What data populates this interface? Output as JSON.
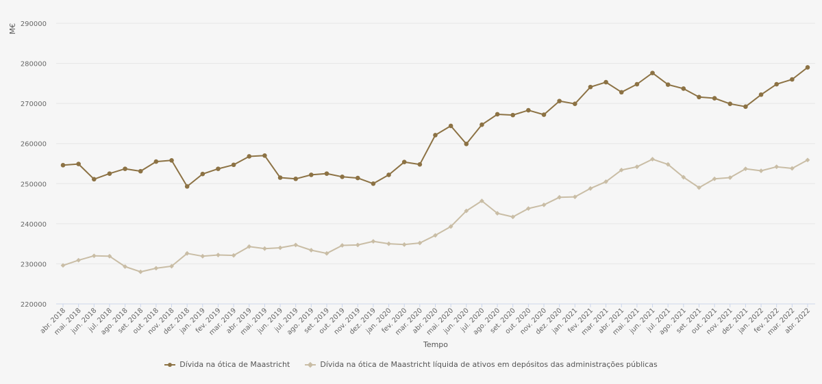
{
  "chart_data": {
    "type": "line",
    "title": "",
    "xlabel": "Tempo",
    "ylabel": "M€",
    "ylim": [
      220000,
      290000
    ],
    "yticks": [
      "220000",
      "230000",
      "240000",
      "250000",
      "260000",
      "270000",
      "280000",
      "290000"
    ],
    "categories": [
      "abr. 2018",
      "mai. 2018",
      "jun. 2018",
      "jul. 2018",
      "ago. 2018",
      "set. 2018",
      "out. 2018",
      "nov. 2018",
      "dez. 2018",
      "jan. 2019",
      "fev. 2019",
      "mar. 2019",
      "abr. 2019",
      "mai. 2019",
      "jun. 2019",
      "jul. 2019",
      "ago. 2019",
      "set. 2019",
      "out. 2019",
      "nov. 2019",
      "dez. 2019",
      "jan. 2020",
      "fev. 2020",
      "mar. 2020",
      "abr. 2020",
      "mai. 2020",
      "jun. 2020",
      "jul. 2020",
      "ago. 2020",
      "set. 2020",
      "out. 2020",
      "nov. 2020",
      "dez. 2020",
      "jan. 2021",
      "fev. 2021",
      "mar. 2021",
      "abr. 2021",
      "mai. 2021",
      "jun. 2021",
      "jul. 2021",
      "ago. 2021",
      "set. 2021",
      "out. 2021",
      "nov. 2021",
      "dez. 2021",
      "jan. 2022",
      "fev. 2022",
      "mar. 2022",
      "abr. 2022"
    ],
    "series": [
      {
        "name": "Dívida na ótica de Maastricht",
        "color": "#8c7244",
        "marker": "circle",
        "values": [
          254600,
          254900,
          251100,
          252500,
          253700,
          253100,
          255500,
          255800,
          249300,
          252400,
          253700,
          254700,
          256800,
          257000,
          251500,
          251200,
          252200,
          252500,
          251700,
          251400,
          250000,
          252200,
          255400,
          254800,
          262100,
          264400,
          259900,
          264700,
          267300,
          267100,
          268300,
          267200,
          270600,
          269900,
          274100,
          275300,
          272800,
          274800,
          277600,
          274700,
          273700,
          271600,
          271300,
          269900,
          269200,
          272200,
          274800,
          276000,
          279000
        ]
      },
      {
        "name": "Dívida na ótica de Maastricht líquida de ativos em depósitos das administrações públicas",
        "color": "#c9bda5",
        "marker": "diamond",
        "values": [
          229600,
          230900,
          232000,
          231900,
          229300,
          228000,
          228900,
          229400,
          232600,
          231900,
          232200,
          232100,
          234300,
          233800,
          234000,
          234700,
          233400,
          232600,
          234600,
          234700,
          235600,
          235000,
          234800,
          235200,
          237100,
          239300,
          243200,
          245700,
          242600,
          241700,
          243800,
          244700,
          246600,
          246700,
          248800,
          250500,
          253400,
          254200,
          256100,
          254800,
          251600,
          249000,
          251200,
          251500,
          253700,
          253200,
          254200,
          253800,
          255900
        ]
      }
    ],
    "grid": true,
    "legend_position": "bottom-center"
  }
}
